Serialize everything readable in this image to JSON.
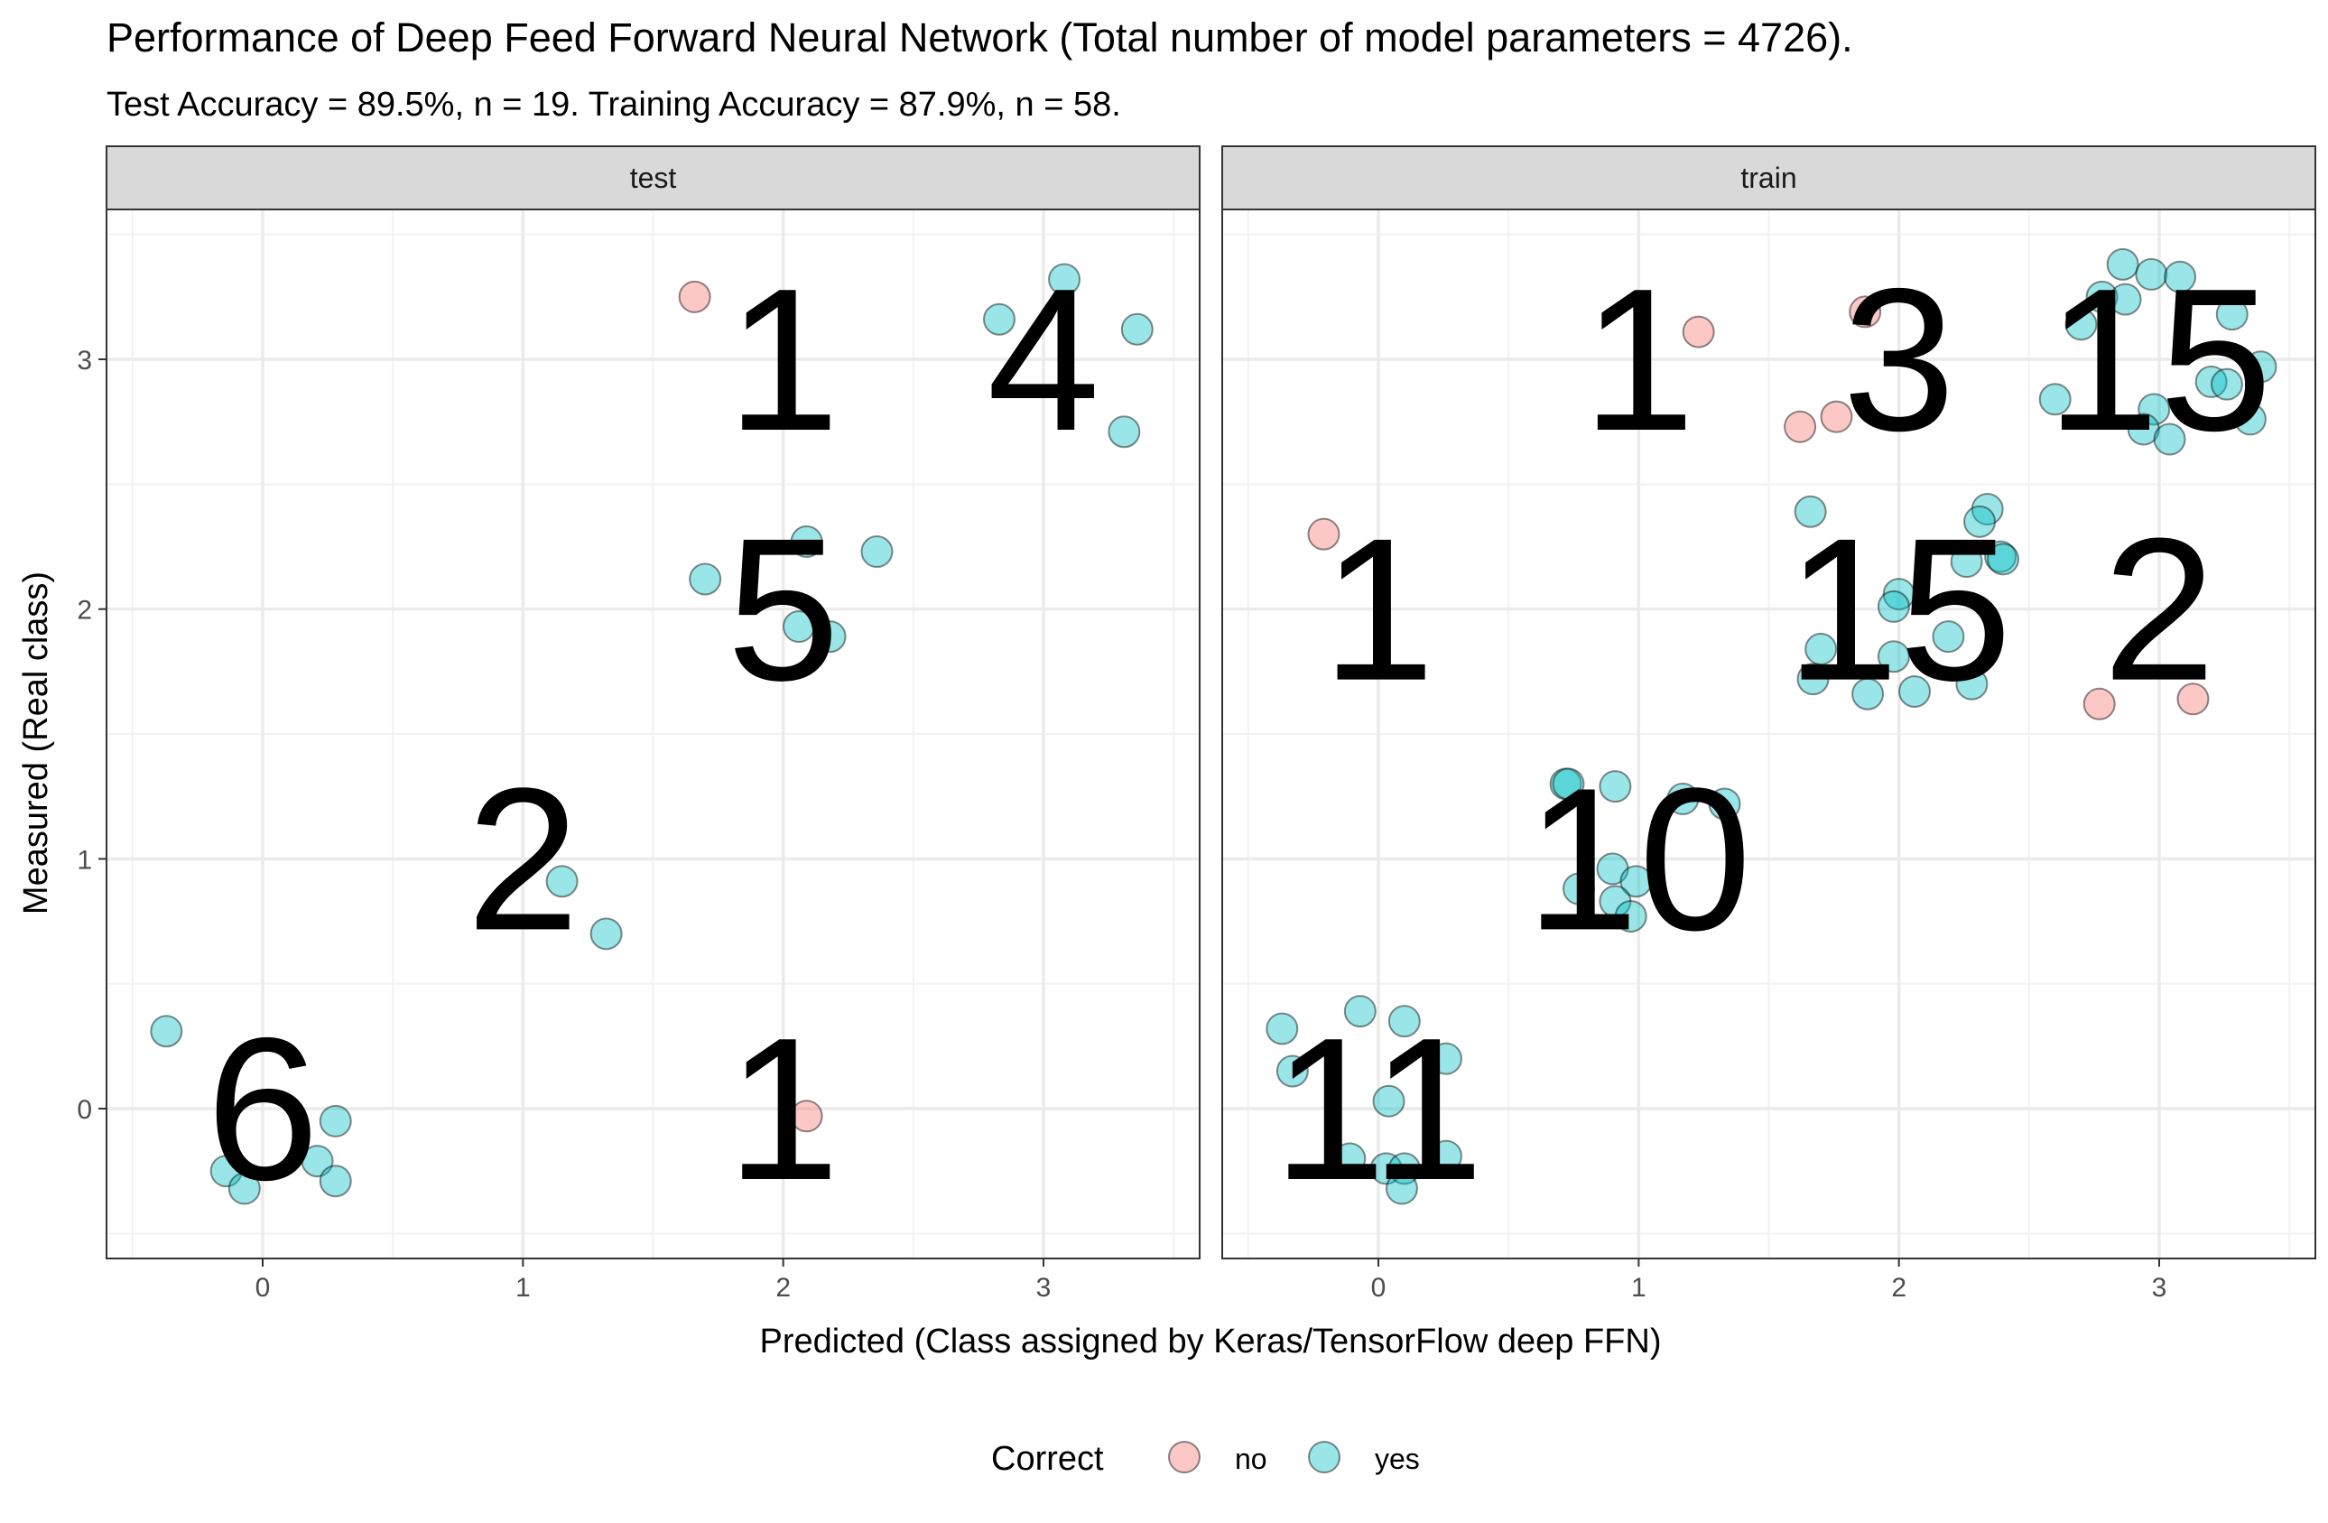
{
  "chart_data": {
    "type": "scatter",
    "title": "Performance of Deep Feed Forward Neural Network (Total number of model parameters = 4726).",
    "subtitle": "Test Accuracy = 89.5%, n = 19. Training Accuracy = 87.9%, n = 58.",
    "xlabel": "Predicted (Class assigned by Keras/TensorFlow deep FFN)",
    "ylabel": "Measured (Real class)",
    "xlim": [
      -0.6,
      3.6
    ],
    "ylim": [
      -0.6,
      3.6
    ],
    "x_ticks": [
      0,
      1,
      2,
      3
    ],
    "y_ticks": [
      0,
      1,
      2,
      3
    ],
    "grid": true,
    "legend": {
      "title": "Correct",
      "position": "bottom",
      "entries": [
        {
          "label": "no",
          "color": "#F8766D"
        },
        {
          "label": "yes",
          "color": "#00BFC4"
        }
      ]
    },
    "facets": [
      {
        "label": "test",
        "counts": [
          {
            "x": 2,
            "y": 3,
            "text": "1"
          },
          {
            "x": 3,
            "y": 3,
            "text": "4"
          },
          {
            "x": 2,
            "y": 2,
            "text": "5"
          },
          {
            "x": 1,
            "y": 1,
            "text": "2"
          },
          {
            "x": 0,
            "y": 0,
            "text": "6"
          },
          {
            "x": 2,
            "y": 0,
            "text": "1"
          }
        ],
        "points": [
          {
            "x": 1.66,
            "y": 3.25,
            "correct": "no"
          },
          {
            "x": 2.83,
            "y": 3.16,
            "correct": "yes"
          },
          {
            "x": 3.08,
            "y": 3.32,
            "correct": "yes"
          },
          {
            "x": 3.36,
            "y": 3.12,
            "correct": "yes"
          },
          {
            "x": 3.31,
            "y": 2.71,
            "correct": "yes"
          },
          {
            "x": 1.7,
            "y": 2.12,
            "correct": "yes"
          },
          {
            "x": 2.09,
            "y": 2.27,
            "correct": "yes"
          },
          {
            "x": 2.36,
            "y": 2.23,
            "correct": "yes"
          },
          {
            "x": 2.06,
            "y": 1.93,
            "correct": "yes"
          },
          {
            "x": 2.18,
            "y": 1.89,
            "correct": "yes"
          },
          {
            "x": 1.15,
            "y": 0.91,
            "correct": "yes"
          },
          {
            "x": 1.32,
            "y": 0.7,
            "correct": "yes"
          },
          {
            "x": -0.37,
            "y": 0.31,
            "correct": "yes"
          },
          {
            "x": 0.28,
            "y": -0.05,
            "correct": "yes"
          },
          {
            "x": 0.21,
            "y": -0.21,
            "correct": "yes"
          },
          {
            "x": -0.14,
            "y": -0.25,
            "correct": "yes"
          },
          {
            "x": -0.07,
            "y": -0.32,
            "correct": "yes"
          },
          {
            "x": 0.28,
            "y": -0.29,
            "correct": "yes"
          },
          {
            "x": 2.09,
            "y": -0.03,
            "correct": "no"
          }
        ]
      },
      {
        "label": "train",
        "counts": [
          {
            "x": 1,
            "y": 3,
            "text": "1"
          },
          {
            "x": 2,
            "y": 3,
            "text": "3"
          },
          {
            "x": 3,
            "y": 3,
            "text": "15"
          },
          {
            "x": 0,
            "y": 2,
            "text": "1"
          },
          {
            "x": 2,
            "y": 2,
            "text": "15"
          },
          {
            "x": 3,
            "y": 2,
            "text": "2"
          },
          {
            "x": 1,
            "y": 1,
            "text": "10"
          },
          {
            "x": 0,
            "y": 0,
            "text": "11"
          }
        ],
        "points": [
          {
            "x": 1.23,
            "y": 3.11,
            "correct": "no"
          },
          {
            "x": 1.87,
            "y": 3.19,
            "correct": "no"
          },
          {
            "x": 1.62,
            "y": 2.73,
            "correct": "no"
          },
          {
            "x": 1.76,
            "y": 2.77,
            "correct": "no"
          },
          {
            "x": 2.86,
            "y": 3.38,
            "correct": "yes"
          },
          {
            "x": 2.97,
            "y": 3.34,
            "correct": "yes"
          },
          {
            "x": 3.08,
            "y": 3.33,
            "correct": "yes"
          },
          {
            "x": 2.78,
            "y": 3.25,
            "correct": "yes"
          },
          {
            "x": 2.87,
            "y": 3.24,
            "correct": "yes"
          },
          {
            "x": 2.7,
            "y": 3.14,
            "correct": "yes"
          },
          {
            "x": 3.28,
            "y": 3.18,
            "correct": "yes"
          },
          {
            "x": 3.39,
            "y": 2.97,
            "correct": "yes"
          },
          {
            "x": 3.2,
            "y": 2.91,
            "correct": "yes"
          },
          {
            "x": 3.26,
            "y": 2.9,
            "correct": "yes"
          },
          {
            "x": 2.6,
            "y": 2.84,
            "correct": "yes"
          },
          {
            "x": 2.98,
            "y": 2.8,
            "correct": "yes"
          },
          {
            "x": 2.94,
            "y": 2.72,
            "correct": "yes"
          },
          {
            "x": 3.04,
            "y": 2.68,
            "correct": "yes"
          },
          {
            "x": 3.35,
            "y": 2.76,
            "correct": "yes"
          },
          {
            "x": -0.21,
            "y": 2.3,
            "correct": "no"
          },
          {
            "x": 1.66,
            "y": 2.39,
            "correct": "yes"
          },
          {
            "x": 2.34,
            "y": 2.4,
            "correct": "yes"
          },
          {
            "x": 2.31,
            "y": 2.35,
            "correct": "yes"
          },
          {
            "x": 2.26,
            "y": 2.19,
            "correct": "yes"
          },
          {
            "x": 2.39,
            "y": 2.21,
            "correct": "yes"
          },
          {
            "x": 2.4,
            "y": 2.2,
            "correct": "yes"
          },
          {
            "x": 2.0,
            "y": 2.06,
            "correct": "yes"
          },
          {
            "x": 1.98,
            "y": 2.01,
            "correct": "yes"
          },
          {
            "x": 2.19,
            "y": 1.89,
            "correct": "yes"
          },
          {
            "x": 1.7,
            "y": 1.84,
            "correct": "yes"
          },
          {
            "x": 1.98,
            "y": 1.81,
            "correct": "yes"
          },
          {
            "x": 1.67,
            "y": 1.72,
            "correct": "yes"
          },
          {
            "x": 2.28,
            "y": 1.7,
            "correct": "yes"
          },
          {
            "x": 1.88,
            "y": 1.66,
            "correct": "yes"
          },
          {
            "x": 2.06,
            "y": 1.67,
            "correct": "yes"
          },
          {
            "x": 2.77,
            "y": 1.62,
            "correct": "no"
          },
          {
            "x": 3.13,
            "y": 1.64,
            "correct": "no"
          },
          {
            "x": 0.72,
            "y": 1.3,
            "correct": "yes"
          },
          {
            "x": 0.73,
            "y": 1.3,
            "correct": "yes"
          },
          {
            "x": 0.91,
            "y": 1.29,
            "correct": "yes"
          },
          {
            "x": 1.17,
            "y": 1.24,
            "correct": "yes"
          },
          {
            "x": 1.33,
            "y": 1.22,
            "correct": "yes"
          },
          {
            "x": 0.9,
            "y": 0.96,
            "correct": "yes"
          },
          {
            "x": 0.99,
            "y": 0.91,
            "correct": "yes"
          },
          {
            "x": 0.77,
            "y": 0.88,
            "correct": "yes"
          },
          {
            "x": 0.91,
            "y": 0.83,
            "correct": "yes"
          },
          {
            "x": 0.97,
            "y": 0.77,
            "correct": "yes"
          },
          {
            "x": -0.37,
            "y": 0.32,
            "correct": "yes"
          },
          {
            "x": -0.07,
            "y": 0.39,
            "correct": "yes"
          },
          {
            "x": 0.1,
            "y": 0.35,
            "correct": "yes"
          },
          {
            "x": 0.26,
            "y": 0.2,
            "correct": "yes"
          },
          {
            "x": -0.33,
            "y": 0.15,
            "correct": "yes"
          },
          {
            "x": 0.04,
            "y": 0.03,
            "correct": "yes"
          },
          {
            "x": -0.11,
            "y": -0.2,
            "correct": "yes"
          },
          {
            "x": 0.03,
            "y": -0.24,
            "correct": "yes"
          },
          {
            "x": 0.1,
            "y": -0.24,
            "correct": "yes"
          },
          {
            "x": 0.26,
            "y": -0.19,
            "correct": "yes"
          },
          {
            "x": 0.09,
            "y": -0.32,
            "correct": "yes"
          }
        ]
      }
    ]
  }
}
